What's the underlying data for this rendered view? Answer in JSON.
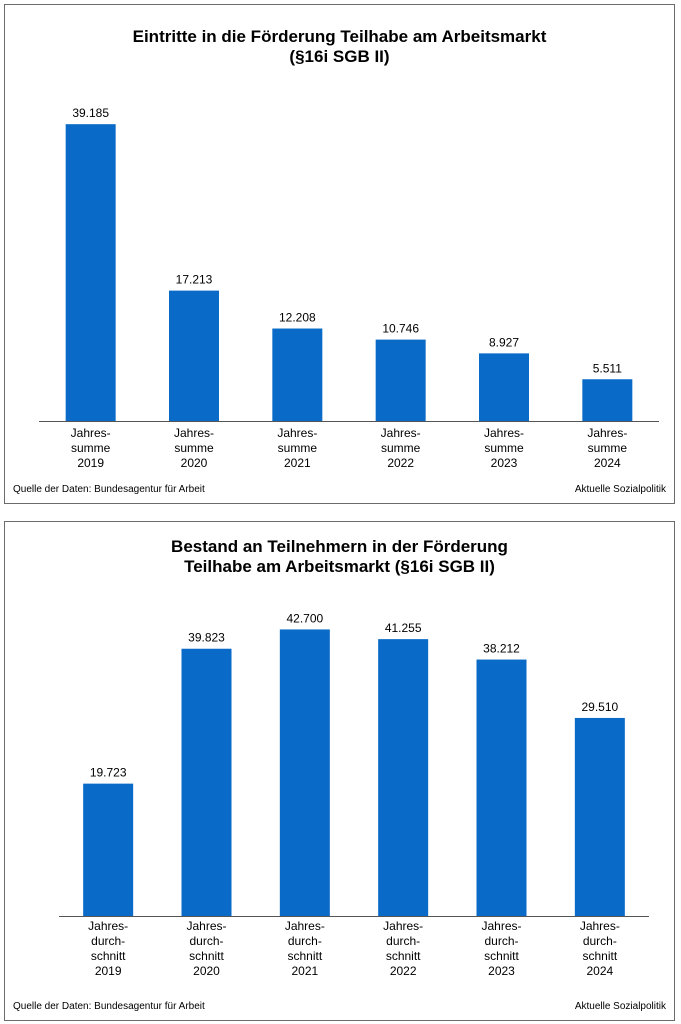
{
  "colors": {
    "bar": "#0a6ac8",
    "axis": "#555555"
  },
  "chart_data": [
    {
      "type": "bar",
      "title_lines": [
        "Eintritte in die Förderung Teilhabe am Arbeitsmarkt",
        "(§16i SGB II)"
      ],
      "categories": [
        [
          "Jahres-",
          "summe",
          "2019"
        ],
        [
          "Jahres-",
          "summe",
          "2020"
        ],
        [
          "Jahres-",
          "summe",
          "2021"
        ],
        [
          "Jahres-",
          "summe",
          "2022"
        ],
        [
          "Jahres-",
          "summe",
          "2023"
        ],
        [
          "Jahres-",
          "summe",
          "2024"
        ]
      ],
      "values": [
        39185,
        17213,
        12208,
        10746,
        8927,
        5511
      ],
      "value_labels": [
        "39.185",
        "17.213",
        "12.208",
        "10.746",
        "8.927",
        "5.511"
      ],
      "ylim": [
        0,
        40000
      ],
      "grid": false,
      "source": "Quelle der Daten: Bundesagentur für Arbeit",
      "credit": "Aktuelle Sozialpolitik"
    },
    {
      "type": "bar",
      "title_lines": [
        "Bestand an Teilnehmern in der Förderung",
        "Teilhabe am Arbeitsmarkt (§16i SGB II)"
      ],
      "categories": [
        [
          "Jahres-",
          "durch-",
          "schnitt",
          "2019"
        ],
        [
          "Jahres-",
          "durch-",
          "schnitt",
          "2020"
        ],
        [
          "Jahres-",
          "durch-",
          "schnitt",
          "2021"
        ],
        [
          "Jahres-",
          "durch-",
          "schnitt",
          "2022"
        ],
        [
          "Jahres-",
          "durch-",
          "schnitt",
          "2023"
        ],
        [
          "Jahres-",
          "durch-",
          "schnitt",
          "2024"
        ]
      ],
      "values": [
        19723,
        39823,
        42700,
        41255,
        38212,
        29510
      ],
      "value_labels": [
        "19.723",
        "39.823",
        "42.700",
        "41.255",
        "38.212",
        "29.510"
      ],
      "ylim": [
        0,
        45000
      ],
      "grid": false,
      "source": "Quelle der Daten: Bundesagentur für Arbeit",
      "credit": "Aktuelle Sozialpolitik"
    }
  ]
}
